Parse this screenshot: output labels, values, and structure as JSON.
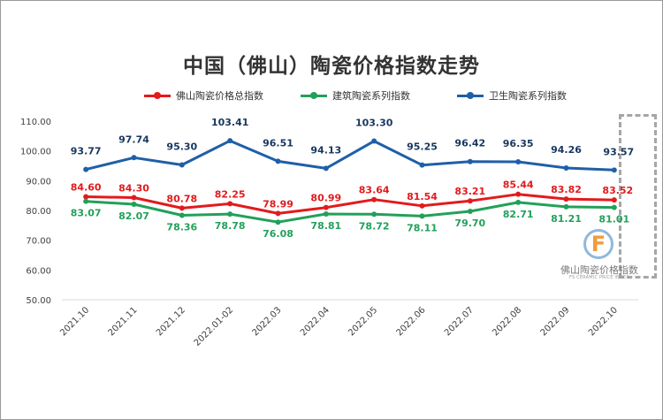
{
  "chart_data": {
    "type": "line",
    "title": "中国（佛山）陶瓷价格指数走势",
    "categories": [
      "2021.10",
      "2021.11",
      "2021.12",
      "2022.01-02",
      "2022.03",
      "2022.04",
      "2022.05",
      "2022.06",
      "2022.07",
      "2022.08",
      "2022.09",
      "2022.10"
    ],
    "ylim": [
      50,
      110
    ],
    "yticks": [
      "50.00",
      "60.00",
      "70.00",
      "80.00",
      "90.00",
      "100.00",
      "110.00"
    ],
    "legend_position": "top",
    "grid": false,
    "series": [
      {
        "name": "佛山陶瓷价格总指数",
        "color": "#e31a1c",
        "values": [
          84.6,
          84.3,
          80.78,
          82.25,
          78.99,
          80.99,
          83.64,
          81.54,
          83.21,
          85.44,
          83.82,
          83.52
        ],
        "labels": [
          "84.60",
          "84.30",
          "80.78",
          "82.25",
          "78.99",
          "80.99",
          "83.64",
          "81.54",
          "83.21",
          "85.44",
          "83.82",
          "83.52"
        ]
      },
      {
        "name": "建筑陶瓷系列指数",
        "color": "#22a05a",
        "values": [
          83.07,
          82.07,
          78.36,
          78.78,
          76.08,
          78.81,
          78.72,
          78.11,
          79.7,
          82.71,
          81.21,
          81.01
        ],
        "labels": [
          "83.07",
          "82.07",
          "78.36",
          "78.78",
          "76.08",
          "78.81",
          "78.72",
          "78.11",
          "79.70",
          "82.71",
          "81.21",
          "81.01"
        ]
      },
      {
        "name": "卫生陶瓷系列指数",
        "color": "#1f5fa8",
        "values": [
          93.77,
          97.74,
          95.3,
          103.41,
          96.51,
          94.13,
          103.3,
          95.25,
          96.42,
          96.35,
          94.26,
          93.57
        ],
        "labels": [
          "93.77",
          "97.74",
          "95.30",
          "103.41",
          "96.51",
          "94.13",
          "103.30",
          "95.25",
          "96.42",
          "96.35",
          "94.26",
          "93.57"
        ]
      }
    ]
  },
  "watermark": {
    "logo_letter": "F",
    "name_cn": "佛山陶瓷价格指数",
    "name_en": "FS CERAMIC PRICE INDEX"
  },
  "label_colors": {
    "red": "#e31a1c",
    "green": "#22a05a",
    "blue": "#17375e"
  }
}
